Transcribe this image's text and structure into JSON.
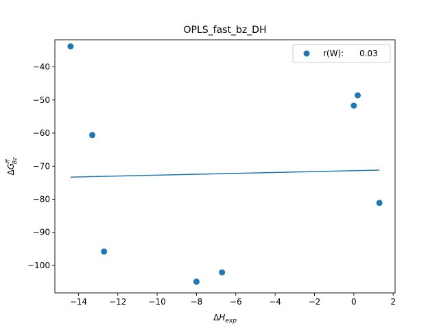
{
  "chart_data": {
    "type": "scatter",
    "title": "OPLS_fast_bz_DH",
    "xlabel": "ΔH_exp",
    "ylabel": "ΔG^ff_Bz",
    "xlim": [
      -15.2,
      2.1
    ],
    "ylim": [
      -108.3,
      -31.8
    ],
    "xticks": [
      -14,
      -12,
      -10,
      -8,
      -6,
      -4,
      -2,
      0,
      2
    ],
    "yticks": [
      -100,
      -90,
      -80,
      -70,
      -60,
      -50,
      -40
    ],
    "grid": false,
    "legend_position": "top-right",
    "legend_label": "r(W):      0.03",
    "color": "#1f77b4",
    "series": [
      {
        "kind": "scatter",
        "x": [
          -14.4,
          -13.3,
          -12.7,
          -8.0,
          -6.7,
          0.0,
          0.2,
          1.3
        ],
        "y": [
          -33.8,
          -60.6,
          -95.8,
          -104.9,
          -102.1,
          -51.7,
          -48.6,
          -81.1
        ]
      },
      {
        "kind": "line",
        "x": [
          -14.4,
          1.3
        ],
        "y": [
          -73.3,
          -71.2
        ]
      }
    ]
  }
}
